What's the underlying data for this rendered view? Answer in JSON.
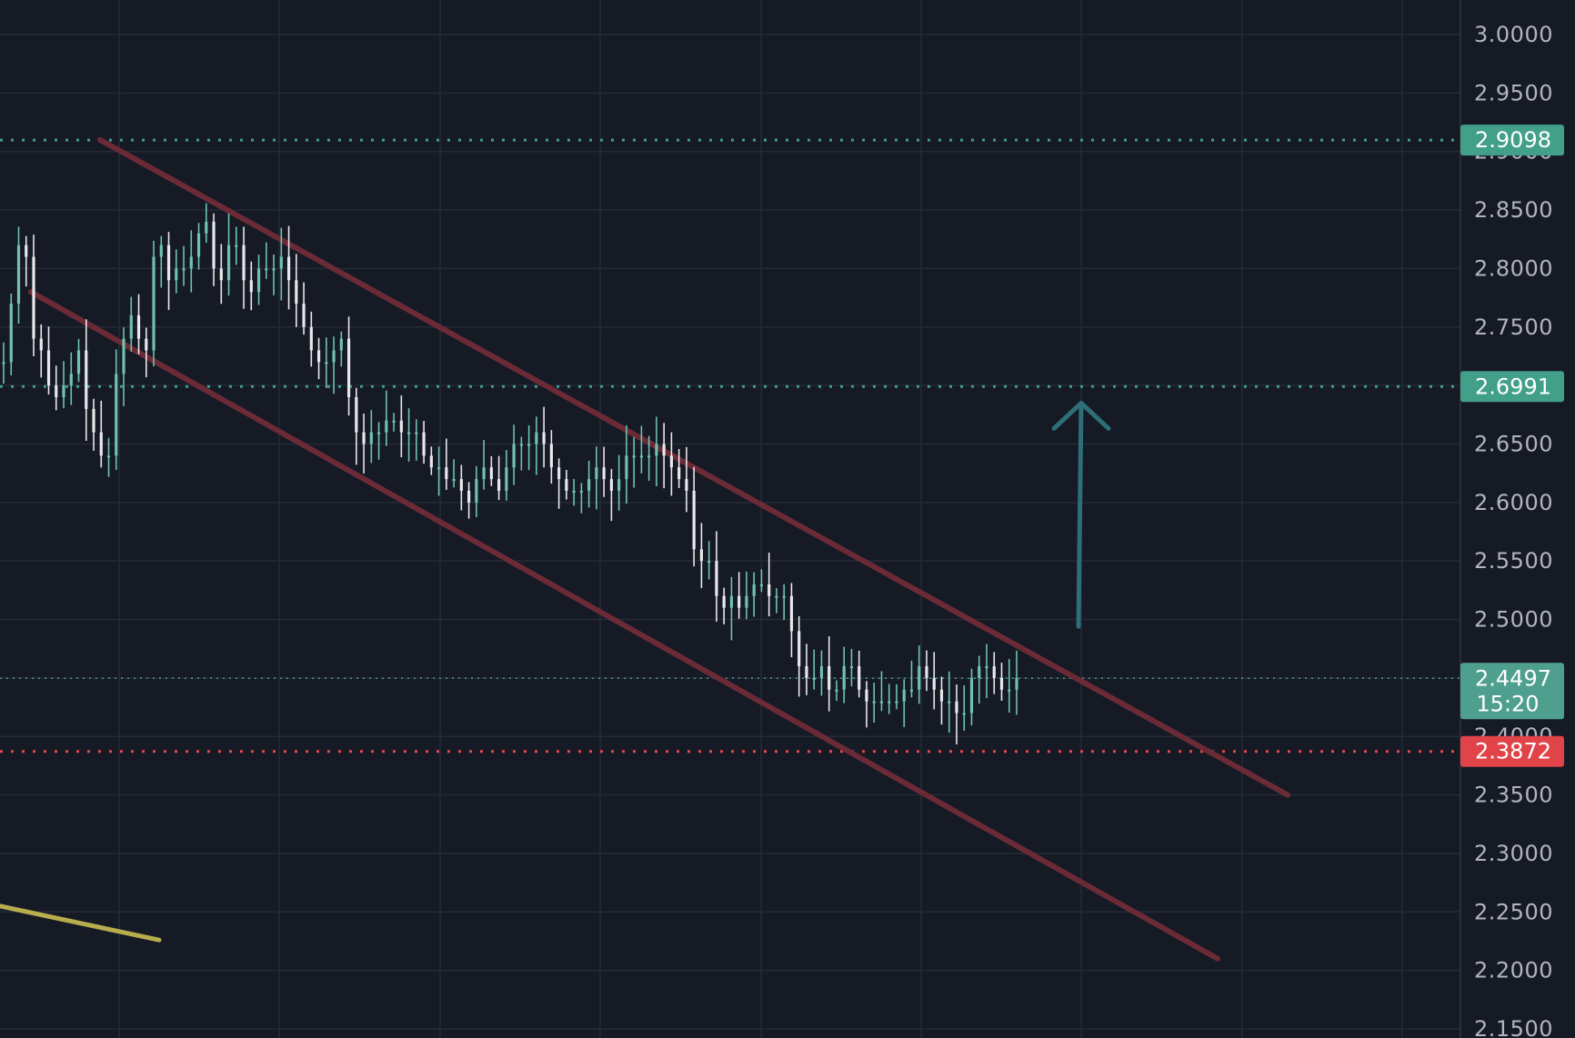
{
  "colors": {
    "background": "#161a25",
    "grid": "#252a36",
    "axis_separator": "#2a2e39",
    "candle": "#e8e8ea",
    "candle_up": "#6fc2b0",
    "level_line": "#3f9d8c",
    "level_badge": "#42a088",
    "current_badge": "#4f9f8f",
    "support_line": "#e0464a",
    "support_badge": "#e04448",
    "channel": "#6b2b36",
    "arrow": "#2d6e78",
    "trend_line": "#b7ad4e",
    "tick_text": "#b2b5be"
  },
  "axis": {
    "price_ticks": [
      "3.0000",
      "2.9500",
      "2.8500",
      "2.8000",
      "2.7500",
      "2.6500",
      "2.6000",
      "2.5500",
      "2.5000",
      "2.3500",
      "2.3000",
      "2.2500",
      "2.2000",
      "2.1500"
    ],
    "hidden_behind_badges": [
      "2.9000",
      "2.4000"
    ],
    "price_range": [
      2.13,
      3.03
    ]
  },
  "chart_data": {
    "type": "candlestick",
    "y_scale": "linear",
    "grid": true,
    "price_levels": [
      {
        "label": "2.9098",
        "value": 2.9098,
        "style": "dotted",
        "role": "resistance"
      },
      {
        "label": "2.6991",
        "value": 2.6991,
        "style": "dotted",
        "role": "resistance"
      },
      {
        "label": "2.4497",
        "value": 2.4497,
        "style": "dotted",
        "role": "current-price",
        "timer": "15:20"
      },
      {
        "label": "2.3872",
        "value": 2.3872,
        "style": "dotted",
        "role": "support"
      }
    ],
    "drawings": {
      "descending_channel": {
        "upper_line": {
          "from": 2.91,
          "to": 2.35
        },
        "lower_line": {
          "from": 2.78,
          "to": 2.21
        }
      },
      "trend_line_from": 2.255,
      "trend_line_to": 2.226,
      "projection_arrow": {
        "from": 2.494,
        "to": 2.685,
        "direction": "up"
      }
    },
    "series": [
      {
        "values": [
          2.72,
          2.77,
          2.82,
          2.81,
          2.74,
          2.73,
          2.7,
          2.69,
          2.7,
          2.71,
          2.73,
          2.68,
          2.66,
          2.64,
          2.64,
          2.71,
          2.74,
          2.76,
          2.74,
          2.73,
          2.81,
          2.82,
          2.79,
          2.8,
          2.8,
          2.81,
          2.83,
          2.84,
          2.8,
          2.79,
          2.82,
          2.82,
          2.79,
          2.78,
          2.8,
          2.8,
          2.8,
          2.81,
          2.79,
          2.77,
          2.75,
          2.73,
          2.72,
          2.72,
          2.73,
          2.74,
          2.69,
          2.66,
          2.65,
          2.66,
          2.66,
          2.67,
          2.67,
          2.66,
          2.66,
          2.66,
          2.64,
          2.63,
          2.63,
          2.62,
          2.62,
          2.61,
          2.6,
          2.62,
          2.63,
          2.62,
          2.61,
          2.63,
          2.65,
          2.65,
          2.65,
          2.66,
          2.65,
          2.63,
          2.62,
          2.61,
          2.61,
          2.61,
          2.62,
          2.63,
          2.62,
          2.61,
          2.62,
          2.64,
          2.64,
          2.64,
          2.64,
          2.65,
          2.64,
          2.63,
          2.62,
          2.61,
          2.56,
          2.55,
          2.55,
          2.52,
          2.51,
          2.52,
          2.51,
          2.52,
          2.53,
          2.53,
          2.52,
          2.52,
          2.52,
          2.49,
          2.46,
          2.45,
          2.45,
          2.46,
          2.44,
          2.44,
          2.46,
          2.46,
          2.44,
          2.43,
          2.43,
          2.43,
          2.43,
          2.43,
          2.44,
          2.44,
          2.46,
          2.45,
          2.44,
          2.43,
          2.43,
          2.42,
          2.42,
          2.45,
          2.46,
          2.46,
          2.45,
          2.44,
          2.44,
          2.45
        ]
      }
    ]
  }
}
